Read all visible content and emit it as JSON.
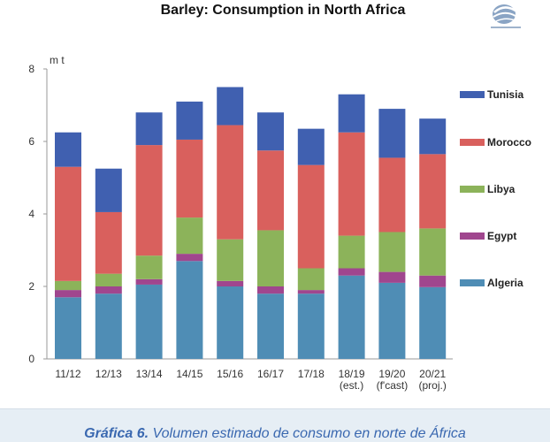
{
  "chart_data": {
    "type": "bar",
    "stacked": true,
    "title": "Barley: Consumption in North Africa",
    "ylabel": "m t",
    "xlabel": "",
    "ylim": [
      0,
      8
    ],
    "yticks": [
      0,
      2,
      4,
      6,
      8
    ],
    "grid": false,
    "legend_position": "right",
    "categories": [
      [
        "11/12"
      ],
      [
        "12/13"
      ],
      [
        "13/14"
      ],
      [
        "14/15"
      ],
      [
        "15/16"
      ],
      [
        "16/17"
      ],
      [
        "17/18"
      ],
      [
        "18/19",
        "(est.)"
      ],
      [
        "19/20",
        "(f'cast)"
      ],
      [
        "20/21",
        "(proj.)"
      ]
    ],
    "series": [
      {
        "name": "Algeria",
        "color": "#4f8db5",
        "values": [
          1.7,
          1.8,
          2.05,
          2.7,
          2.0,
          1.8,
          1.8,
          2.3,
          2.1,
          1.98
        ]
      },
      {
        "name": "Egypt",
        "color": "#a0468e",
        "values": [
          0.2,
          0.2,
          0.15,
          0.2,
          0.15,
          0.2,
          0.1,
          0.2,
          0.3,
          0.32
        ]
      },
      {
        "name": "Libya",
        "color": "#8cb35a",
        "values": [
          0.25,
          0.35,
          0.65,
          1.0,
          1.15,
          1.55,
          0.6,
          0.9,
          1.1,
          1.3
        ]
      },
      {
        "name": "Morocco",
        "color": "#d9605d",
        "values": [
          3.15,
          1.7,
          3.05,
          2.15,
          3.15,
          2.2,
          2.85,
          2.85,
          2.05,
          2.05
        ]
      },
      {
        "name": "Tunisia",
        "color": "#4060b0",
        "values": [
          0.95,
          1.2,
          0.9,
          1.05,
          1.05,
          1.05,
          1.0,
          1.05,
          1.35,
          0.98
        ]
      }
    ]
  },
  "caption": {
    "prefix": "Gráfica 6.",
    "text": " Volumen estimado de consumo en norte de África"
  }
}
